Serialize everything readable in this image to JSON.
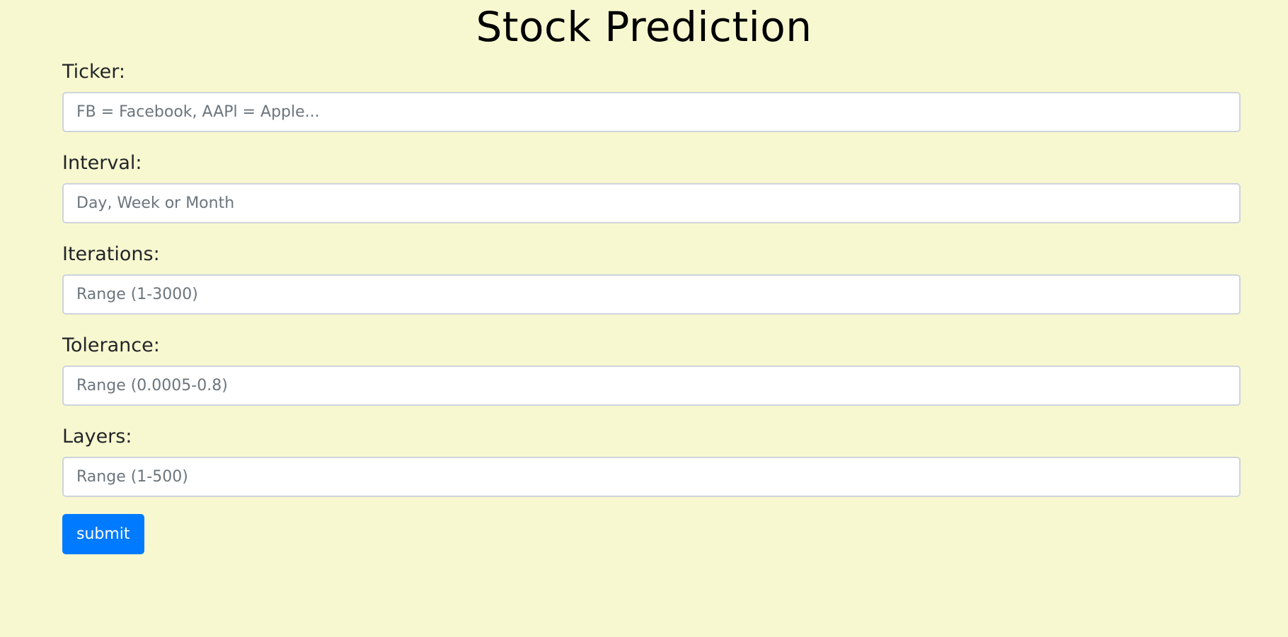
{
  "page": {
    "title": "Stock Prediction",
    "background_color": "#f8f8d0"
  },
  "form": {
    "fields": [
      {
        "label": "Ticker:",
        "value": "",
        "placeholder": "FB = Facebook, AAPl = Apple..."
      },
      {
        "label": "Interval:",
        "value": "",
        "placeholder": "Day, Week or Month"
      },
      {
        "label": "Iterations:",
        "value": "",
        "placeholder": "Range (1-3000)"
      },
      {
        "label": "Tolerance:",
        "value": "",
        "placeholder": "Range (0.0005-0.8)"
      },
      {
        "label": "Layers:",
        "value": "",
        "placeholder": "Range (1-500)"
      }
    ],
    "submit_label": "submit",
    "accent_color": "#007bff"
  }
}
